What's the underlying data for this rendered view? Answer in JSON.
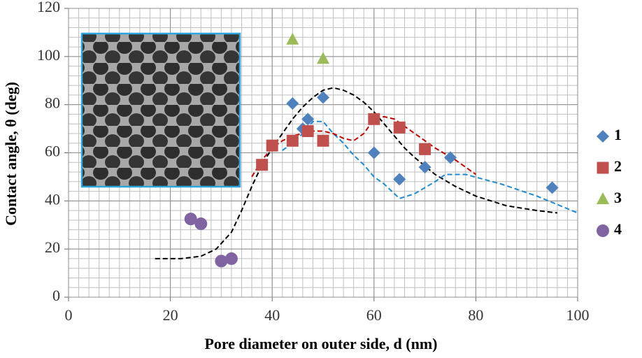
{
  "chart_data": {
    "type": "scatter",
    "xlabel": "Pore diameter on outer side, d (nm)",
    "ylabel": "Contact angle, θ (deg)",
    "xlim": [
      0,
      100
    ],
    "xticks": [
      0,
      20,
      40,
      60,
      80,
      100
    ],
    "ylim": [
      0,
      120
    ],
    "yticks": [
      0,
      20,
      40,
      60,
      80,
      100,
      120
    ],
    "grid": true,
    "minor_xgrid": 2,
    "minor_ygrid": 4,
    "legend": "right",
    "series": [
      {
        "name": "1",
        "marker": "diamond",
        "color": "#4f81bd",
        "x": [
          44,
          46,
          47,
          50,
          60,
          65,
          70,
          75,
          95
        ],
        "values": [
          80.5,
          70,
          74,
          83,
          60,
          49,
          54,
          58,
          45.5
        ]
      },
      {
        "name": "2",
        "marker": "square",
        "color": "#c0504d",
        "x": [
          38,
          40,
          44,
          47,
          50,
          60,
          65,
          70
        ],
        "values": [
          55,
          63,
          65,
          69,
          65,
          74,
          70.5,
          61.5
        ]
      },
      {
        "name": "3",
        "marker": "triangle",
        "color": "#9bbb59",
        "x": [
          44,
          50
        ],
        "values": [
          107,
          99
        ]
      },
      {
        "name": "4",
        "marker": "circle",
        "color": "#8064a2",
        "x": [
          24,
          26,
          30,
          32
        ],
        "values": [
          32.5,
          30.5,
          15,
          16
        ]
      }
    ],
    "trend_lines": [
      {
        "color": "#000000",
        "x": [
          17,
          22,
          26,
          29,
          32,
          34,
          36,
          38,
          40,
          42,
          44,
          46,
          48,
          50,
          52,
          54,
          56,
          58,
          60,
          62,
          64,
          66,
          68,
          72,
          76,
          80,
          86,
          92,
          96
        ],
        "values": [
          16,
          16,
          17,
          20,
          27,
          36,
          46,
          55,
          62,
          68,
          74,
          79,
          83,
          86,
          87,
          86,
          84,
          81,
          77,
          72,
          67,
          62,
          58,
          51,
          46,
          42,
          38,
          36,
          35
        ]
      },
      {
        "color": "#1f8ad0",
        "x": [
          42,
          44,
          46,
          48,
          50,
          52,
          54,
          56,
          58,
          60,
          62,
          65,
          68,
          72,
          74,
          78,
          85,
          92,
          100
        ],
        "values": [
          61,
          64,
          68,
          73,
          73,
          68,
          64,
          59,
          55,
          50,
          47,
          41,
          43,
          48,
          51,
          51,
          47,
          42,
          35
        ]
      },
      {
        "color": "#c00000",
        "x": [
          36,
          38,
          40,
          42,
          44,
          46,
          48,
          50,
          52,
          54,
          56,
          58,
          60,
          62,
          64,
          66,
          68,
          72,
          76,
          80
        ],
        "values": [
          50,
          57,
          62,
          65,
          67,
          68,
          69,
          69,
          68,
          66,
          65,
          68,
          74,
          75,
          74,
          71,
          68,
          62,
          57,
          51
        ]
      }
    ]
  }
}
